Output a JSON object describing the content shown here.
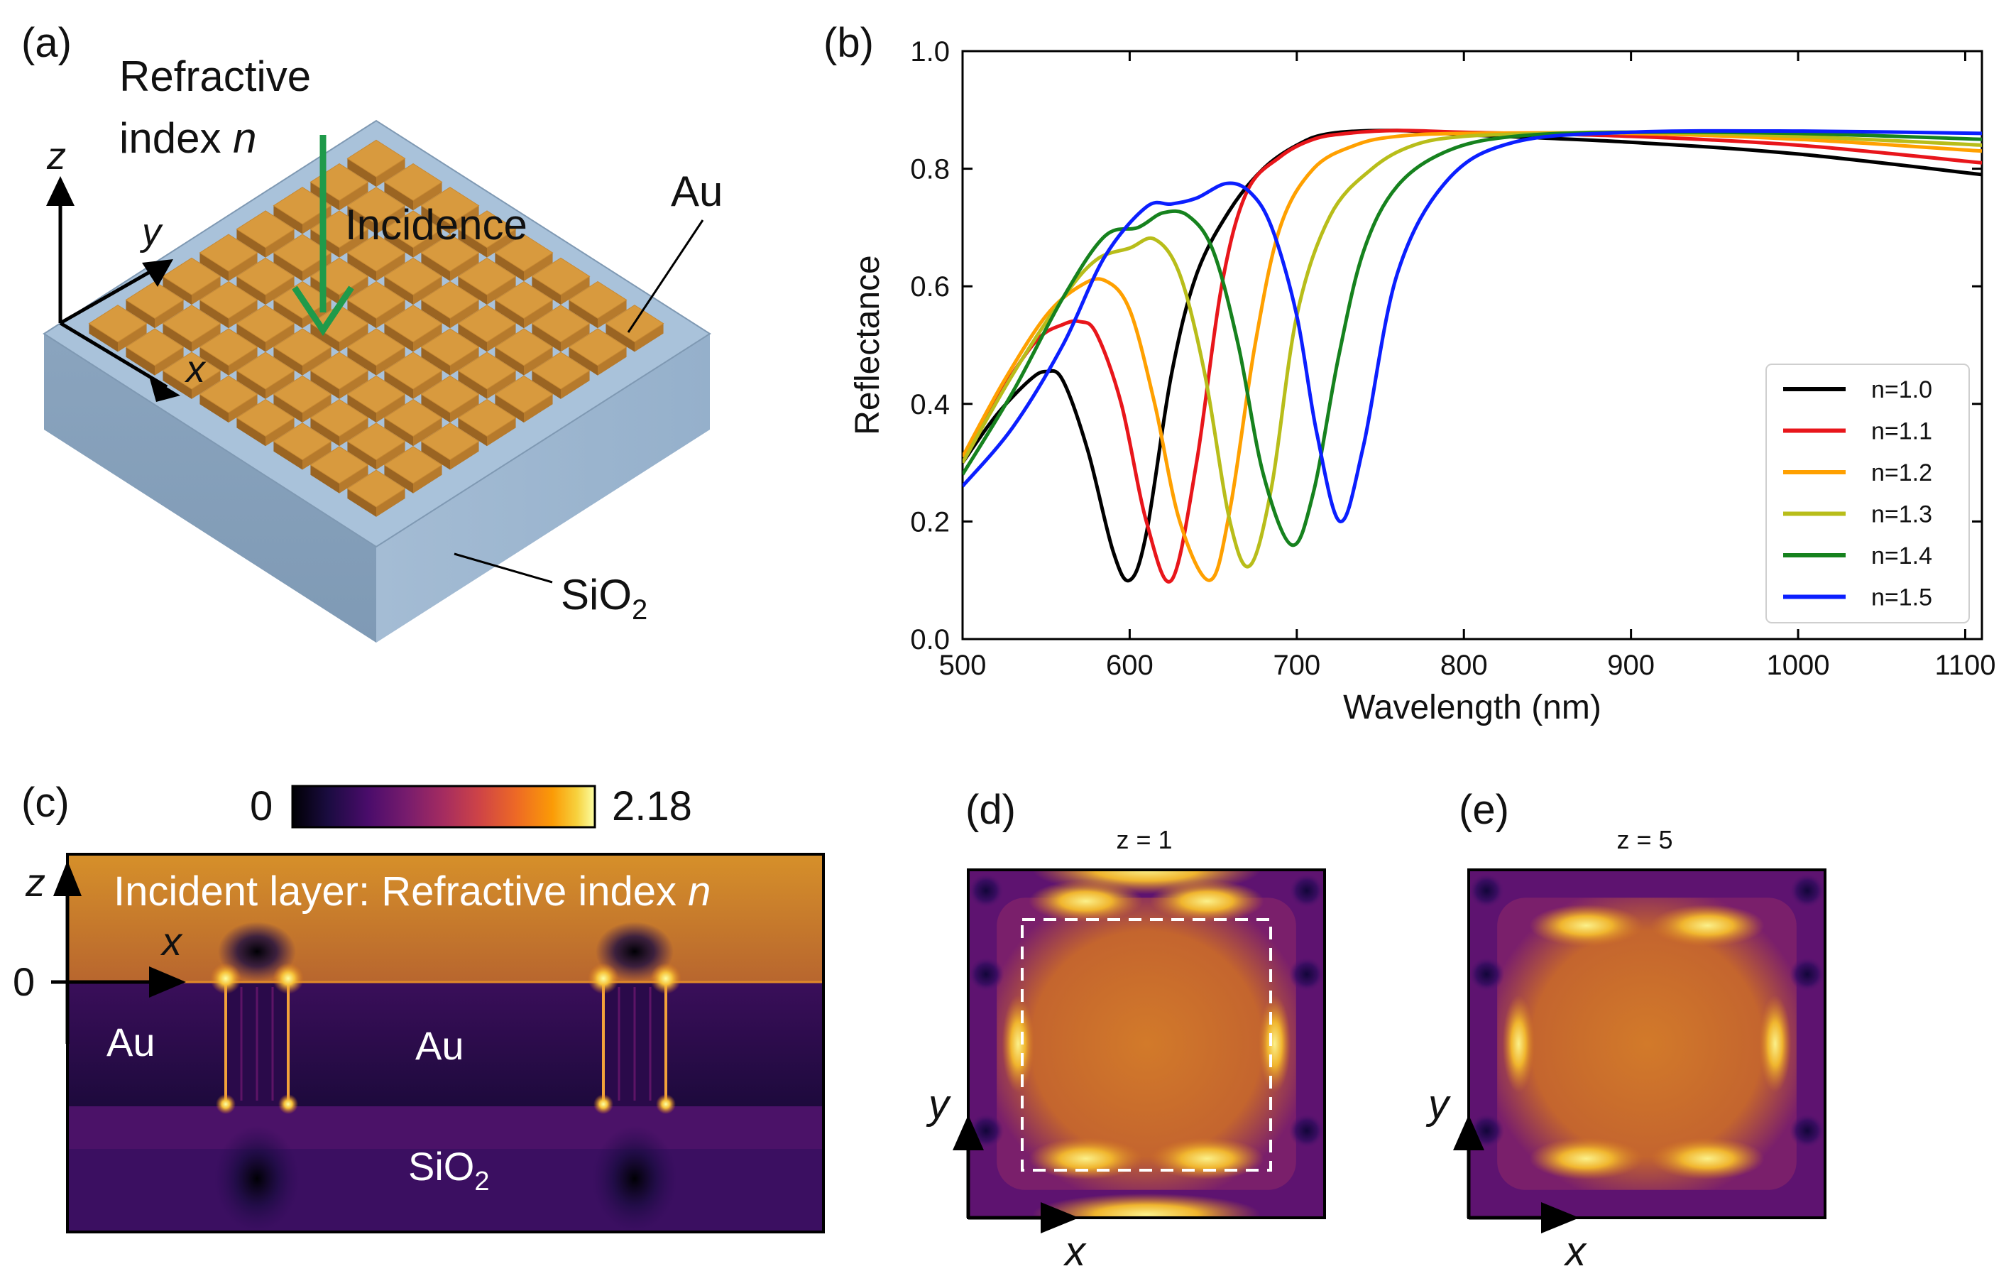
{
  "panel_labels": {
    "a": "(a)",
    "b": "(b)",
    "c": "(c)",
    "d": "(d)",
    "e": "(e)"
  },
  "panel_a": {
    "title_line1": "Refractive",
    "title_line2_prefix": "index ",
    "title_line2_var": "n",
    "incidence": "Incidence",
    "au": "Au",
    "sio2": "SiO",
    "sio2_sub": "2",
    "axis_x": "x",
    "axis_y": "y",
    "axis_z": "z",
    "colors": {
      "gold": "#d89a3e",
      "gold_dark": "#9a6422",
      "substrate": "#8fa9c4",
      "substrate_top": "#a9c2da",
      "arrow": "#1f9a4a"
    }
  },
  "chart_data": {
    "type": "line",
    "title": "",
    "xlabel": "Wavelength (nm)",
    "ylabel": "Reflectance",
    "xlim": [
      500,
      1110
    ],
    "ylim": [
      0.0,
      1.0
    ],
    "xticks": [
      500,
      600,
      700,
      800,
      900,
      1000,
      1100
    ],
    "yticks": [
      0.0,
      0.2,
      0.4,
      0.6,
      0.8,
      1.0
    ],
    "xtick_labels": [
      "500",
      "600",
      "700",
      "800",
      "900",
      "1000",
      "1100"
    ],
    "ytick_labels": [
      "0.0",
      "0.2",
      "0.4",
      "0.6",
      "0.8",
      "1.0"
    ],
    "legend_position": "bottom-right",
    "series": [
      {
        "name": "n=1.0",
        "color": "#000000",
        "x": [
          500,
          520,
          540,
          550,
          560,
          575,
          590,
          600,
          610,
          625,
          640,
          660,
          680,
          700,
          720,
          760,
          800,
          900,
          1000,
          1110
        ],
        "y": [
          0.3,
          0.38,
          0.44,
          0.455,
          0.44,
          0.32,
          0.15,
          0.1,
          0.18,
          0.45,
          0.62,
          0.73,
          0.8,
          0.84,
          0.86,
          0.865,
          0.858,
          0.845,
          0.825,
          0.79
        ]
      },
      {
        "name": "n=1.1",
        "color": "#e8161b",
        "x": [
          500,
          525,
          545,
          560,
          570,
          580,
          595,
          610,
          625,
          640,
          655,
          670,
          690,
          710,
          730,
          760,
          800,
          900,
          1000,
          1110
        ],
        "y": [
          0.31,
          0.43,
          0.51,
          0.535,
          0.54,
          0.52,
          0.4,
          0.2,
          0.1,
          0.3,
          0.6,
          0.76,
          0.82,
          0.85,
          0.86,
          0.865,
          0.862,
          0.855,
          0.84,
          0.81
        ]
      },
      {
        "name": "n=1.2",
        "color": "#ffa000",
        "x": [
          500,
          525,
          550,
          570,
          585,
          600,
          615,
          630,
          648,
          660,
          675,
          690,
          710,
          735,
          760,
          800,
          900,
          1000,
          1110
        ],
        "y": [
          0.31,
          0.44,
          0.55,
          0.6,
          0.61,
          0.56,
          0.4,
          0.2,
          0.1,
          0.22,
          0.5,
          0.7,
          0.8,
          0.84,
          0.855,
          0.86,
          0.86,
          0.85,
          0.83
        ]
      },
      {
        "name": "n=1.3",
        "color": "#b8bd1a",
        "x": [
          500,
          530,
          560,
          580,
          600,
          615,
          630,
          645,
          660,
          672,
          685,
          700,
          720,
          745,
          770,
          800,
          850,
          900,
          1000,
          1110
        ],
        "y": [
          0.3,
          0.45,
          0.58,
          0.645,
          0.665,
          0.68,
          0.62,
          0.45,
          0.2,
          0.125,
          0.26,
          0.55,
          0.72,
          0.8,
          0.84,
          0.855,
          0.86,
          0.862,
          0.855,
          0.84
        ]
      },
      {
        "name": "n=1.4",
        "color": "#16821e",
        "x": [
          500,
          530,
          560,
          585,
          605,
          620,
          635,
          650,
          665,
          680,
          697,
          710,
          725,
          740,
          760,
          790,
          830,
          900,
          1000,
          1110
        ],
        "y": [
          0.28,
          0.42,
          0.58,
          0.685,
          0.7,
          0.725,
          0.72,
          0.66,
          0.5,
          0.28,
          0.16,
          0.25,
          0.48,
          0.66,
          0.77,
          0.83,
          0.855,
          0.862,
          0.86,
          0.85
        ]
      },
      {
        "name": "n=1.5",
        "color": "#0b1fff",
        "x": [
          500,
          530,
          560,
          585,
          610,
          625,
          640,
          658,
          672,
          685,
          700,
          712,
          726,
          740,
          760,
          790,
          830,
          900,
          1000,
          1110
        ],
        "y": [
          0.26,
          0.36,
          0.5,
          0.65,
          0.735,
          0.74,
          0.75,
          0.775,
          0.76,
          0.7,
          0.55,
          0.35,
          0.2,
          0.33,
          0.62,
          0.78,
          0.845,
          0.862,
          0.864,
          0.86
        ]
      }
    ]
  },
  "panel_c": {
    "colorbar_min": "0",
    "colorbar_max": "2.18",
    "incident_prefix": "Incident layer: Refractive index ",
    "incident_var": "n",
    "au_left": "Au",
    "au_center": "Au",
    "sio2": "SiO",
    "sio2_sub": "2",
    "axis_z": "z",
    "axis_x": "x",
    "zero": "0",
    "colormap": [
      "#000004",
      "#2c0b55",
      "#6a176e",
      "#a52c60",
      "#d84c3e",
      "#f3761b",
      "#fca50a",
      "#f6d746",
      "#fcffa4"
    ]
  },
  "panel_d": {
    "title": "z = 1",
    "axis_x": "x",
    "axis_y": "y"
  },
  "panel_e": {
    "title": "z = 5",
    "axis_x": "x",
    "axis_y": "y"
  }
}
